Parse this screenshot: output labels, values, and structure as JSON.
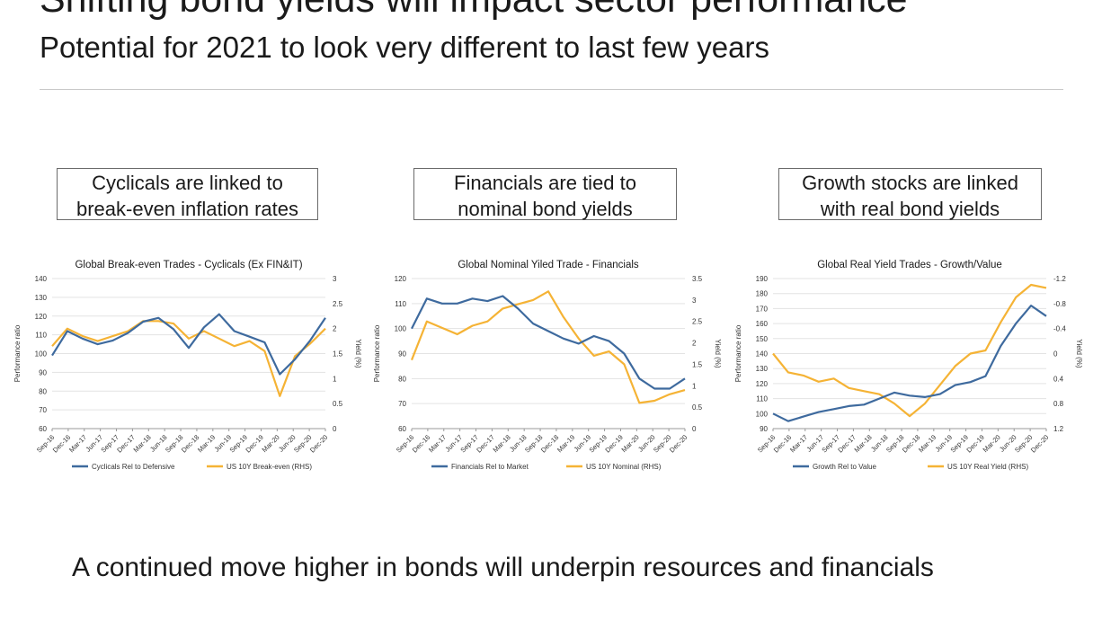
{
  "header": {
    "title": "Shifting bond yields  will impact sector performance",
    "subtitle": "Potential for 2021 to look very different to last few years"
  },
  "callouts": [
    {
      "line1": "Cyclicals are linked to",
      "line2": "break-even inflation rates"
    },
    {
      "line1": "Financials are tied to",
      "line2": "nominal bond yields"
    },
    {
      "line1": "Growth stocks are linked",
      "line2": "with real bond yields"
    }
  ],
  "footer": {
    "text": "A continued move higher in bonds will underpin resources and financials"
  },
  "colors": {
    "blue": "#3e6a9e",
    "orange": "#f5b335",
    "grid": "#e3e3e3",
    "axis": "#9a9a9a"
  },
  "x_ticks": [
    "Sep-16",
    "Dec-16",
    "Mar-17",
    "Jun-17",
    "Sep-17",
    "Dec-17",
    "Mar-18",
    "Jun-18",
    "Sep-18",
    "Dec-18",
    "Mar-19",
    "Jun-19",
    "Sep-19",
    "Dec-19",
    "Mar-20",
    "Jun-20",
    "Sep-20",
    "Dec-20"
  ],
  "chart_data": [
    {
      "type": "line",
      "title": "Global Break-even Trades - Cyclicals (Ex FIN&IT)",
      "ylabel": "Performance ratio",
      "y2label": "Yield (%)",
      "ylim": [
        60,
        140
      ],
      "y2lim": [
        0,
        3
      ],
      "yticks": [
        "60",
        "70",
        "80",
        "90",
        "100",
        "110",
        "120",
        "130",
        "140"
      ],
      "y2ticks": [
        "0",
        "0.5",
        "1",
        "1.5",
        "2",
        "2.5",
        "3"
      ],
      "legend_position": "bottom",
      "series": [
        {
          "name": "Cyclicals Rel to Defensive",
          "axis": "left",
          "color": "#3e6a9e",
          "values": [
            99,
            112,
            108,
            105,
            107,
            111,
            117,
            119,
            113,
            103,
            114,
            121,
            112,
            109,
            106,
            89,
            97,
            107,
            119
          ]
        },
        {
          "name": "US 10Y Break-even (RHS)",
          "axis": "right",
          "color": "#f5b335",
          "values": [
            1.65,
            2.0,
            1.85,
            1.75,
            1.85,
            1.95,
            2.15,
            2.15,
            2.1,
            1.8,
            1.95,
            1.8,
            1.65,
            1.75,
            1.55,
            0.65,
            1.45,
            1.7,
            2.0
          ]
        }
      ]
    },
    {
      "type": "line",
      "title": "Global Nominal Yiled Trade - Financials",
      "ylabel": "Performance ratio",
      "y2label": "Yield (%)",
      "ylim": [
        60,
        120
      ],
      "y2lim": [
        0,
        3.5
      ],
      "yticks": [
        "60",
        "70",
        "80",
        "90",
        "100",
        "110",
        "120"
      ],
      "y2ticks": [
        "0",
        "0.5",
        "1",
        "1.5",
        "2",
        "2.5",
        "3",
        "3.5"
      ],
      "legend_position": "bottom",
      "series": [
        {
          "name": "Financials Rel to Market",
          "axis": "left",
          "color": "#3e6a9e",
          "values": [
            100,
            112,
            110,
            110,
            112,
            111,
            113,
            108,
            102,
            99,
            96,
            94,
            97,
            95,
            90,
            80,
            76,
            76,
            80
          ]
        },
        {
          "name": "US 10Y Nominal (RHS)",
          "axis": "right",
          "color": "#f5b335",
          "values": [
            1.6,
            2.5,
            2.35,
            2.2,
            2.4,
            2.5,
            2.8,
            2.9,
            3.0,
            3.2,
            2.6,
            2.1,
            1.7,
            1.8,
            1.5,
            0.6,
            0.65,
            0.8,
            0.9
          ]
        }
      ]
    },
    {
      "type": "line",
      "title": "Global Real Yield Trades - Growth/Value",
      "ylabel": "Performance ratio",
      "y2label": "Yield (%)",
      "ylim": [
        90,
        190
      ],
      "y2lim": [
        1.2,
        -1.2
      ],
      "yticks": [
        "90",
        "100",
        "110",
        "120",
        "130",
        "140",
        "150",
        "160",
        "170",
        "180",
        "190"
      ],
      "y2ticks": [
        "1.2",
        "0.8",
        "0.4",
        "0",
        "-0.4",
        "-0.8",
        "-1.2"
      ],
      "legend_position": "bottom",
      "series": [
        {
          "name": "Growth Rel to Value",
          "axis": "left",
          "color": "#3e6a9e",
          "values": [
            100,
            95,
            98,
            101,
            103,
            105,
            106,
            110,
            114,
            112,
            111,
            113,
            119,
            121,
            125,
            145,
            160,
            172,
            165
          ]
        },
        {
          "name": "US 10Y Real Yield (RHS)",
          "axis": "right",
          "color": "#f5b335",
          "values": [
            0.0,
            0.3,
            0.35,
            0.45,
            0.4,
            0.55,
            0.6,
            0.65,
            0.8,
            1.0,
            0.8,
            0.5,
            0.2,
            0.0,
            -0.05,
            -0.5,
            -0.9,
            -1.1,
            -1.05
          ]
        }
      ]
    }
  ]
}
